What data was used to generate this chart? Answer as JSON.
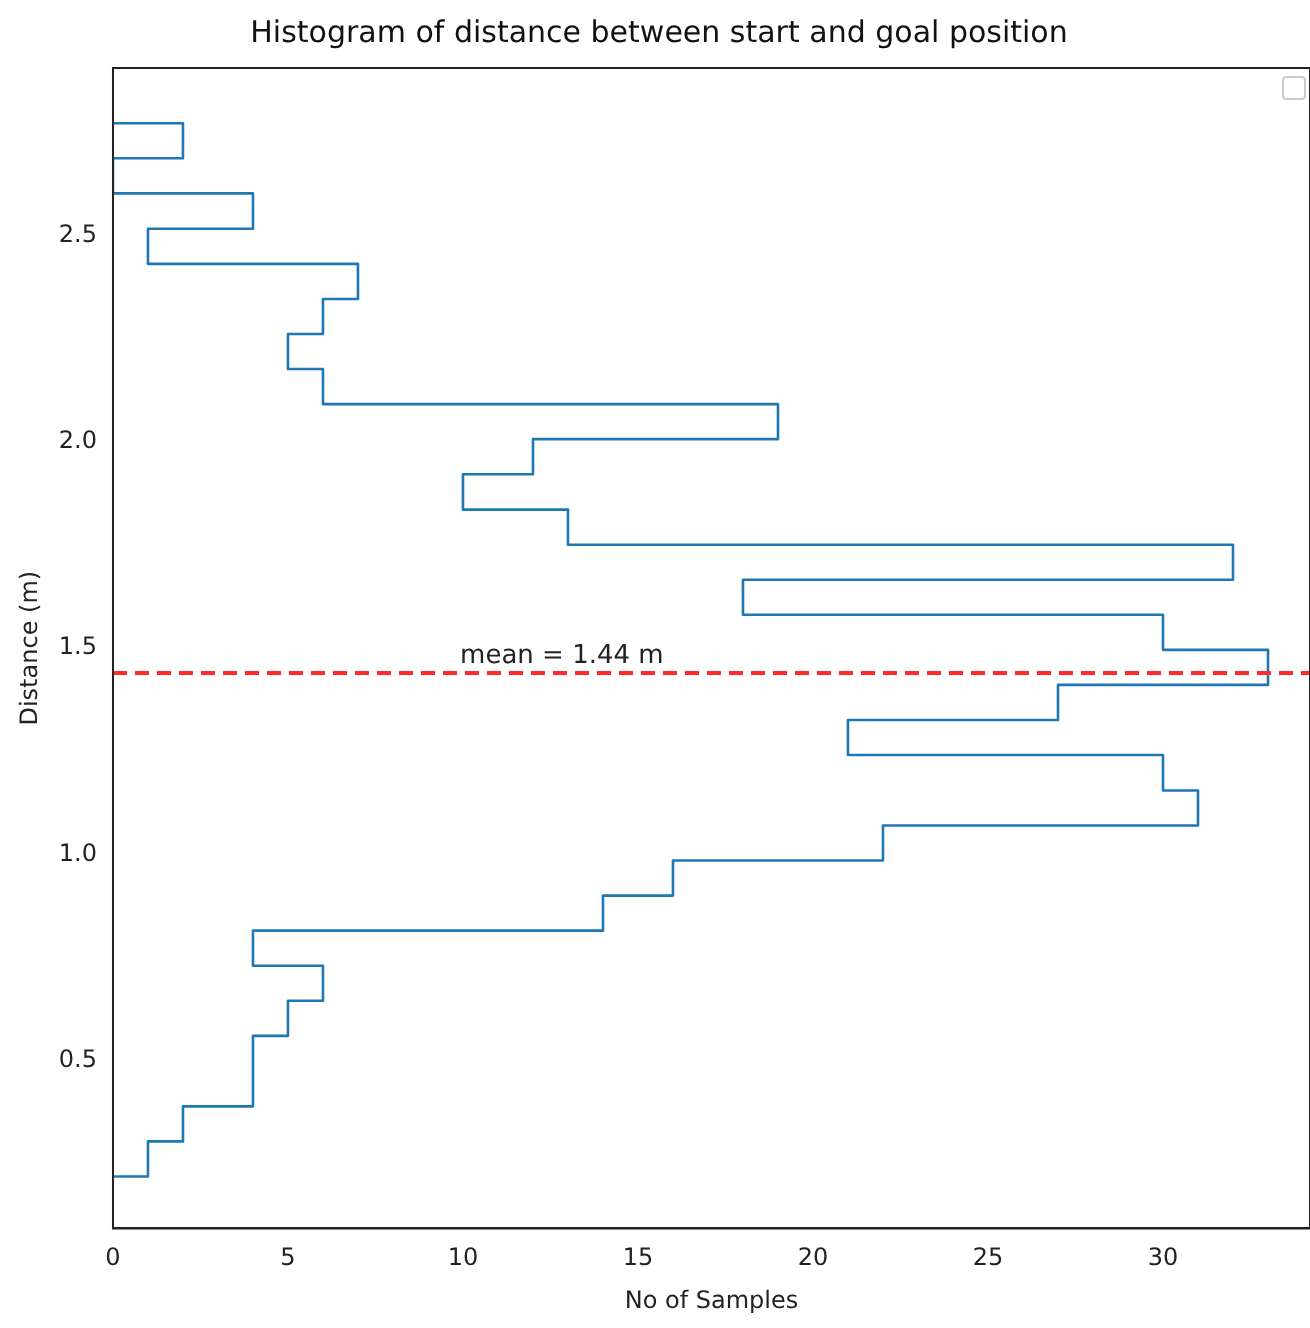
{
  "chart_data": {
    "type": "histogram",
    "orientation": "horizontal",
    "title": "Histogram of distance between start and goal position",
    "xlabel": "No of Samples",
    "ylabel": "Distance (m)",
    "bins": [
      0.219,
      0.304,
      0.389,
      0.474,
      0.56,
      0.645,
      0.73,
      0.815,
      0.9,
      0.985,
      1.07,
      1.155,
      1.241,
      1.326,
      1.411,
      1.496,
      1.581,
      1.666,
      1.751,
      1.836,
      1.922,
      2.007,
      2.092,
      2.177,
      2.262,
      2.347,
      2.432,
      2.517,
      2.603,
      2.688,
      2.773
    ],
    "values": [
      1,
      2,
      4,
      4,
      5,
      6,
      4,
      14,
      16,
      22,
      31,
      30,
      21,
      27,
      33,
      30,
      18,
      32,
      13,
      10,
      12,
      19,
      6,
      5,
      6,
      7,
      1,
      4,
      0,
      2
    ],
    "color": "#1f77b4",
    "xlim": [
      0,
      34.2
    ],
    "xticks": [
      0,
      5,
      10,
      15,
      20,
      25,
      30
    ],
    "ylim": [
      0.093,
      2.907
    ],
    "yticks": [
      0.5,
      {
        "value": 1,
        "label": "1.0"
      },
      1.5,
      {
        "value": 2,
        "label": "2.0"
      },
      2.5
    ],
    "ref_lines": [
      {
        "axis": "y",
        "value": 1.44,
        "label": "mean = 1.44 m",
        "color": "#ff2a2a",
        "line_style": "dashed"
      }
    ],
    "grid": false,
    "legend": false
  }
}
